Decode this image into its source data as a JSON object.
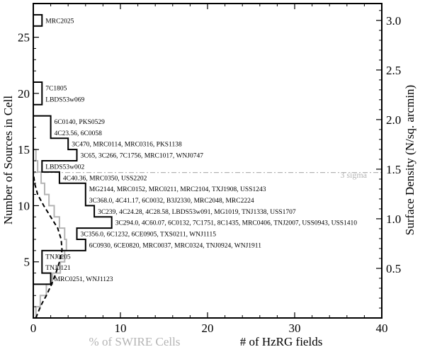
{
  "chart_data": {
    "type": "step-histogram",
    "title": "",
    "ylabel_left": "Number of Sources in Cell",
    "ylabel_right": "Surface Density (N/sq. arcmin)",
    "xlabel_hzrg": "# of HzRG fields",
    "xlabel_swire": "% of SWIRE Cells",
    "xlim": [
      0,
      40
    ],
    "ylim": [
      0,
      28
    ],
    "y2lim": [
      0,
      3.17
    ],
    "x_ticks": [
      0,
      10,
      20,
      30,
      40
    ],
    "y_ticks": [
      5,
      10,
      15,
      20,
      25
    ],
    "y2_ticks": [
      0.5,
      1.0,
      1.5,
      2.0,
      2.5,
      3.0
    ],
    "threshold": {
      "y": 12.95,
      "label": "3 sigma"
    },
    "hzrg_histogram": [
      {
        "y": 3.5,
        "count": 2,
        "label": "MRC0251, WNJ1123"
      },
      {
        "y": 4.5,
        "count": 1,
        "label": "TNJ0121"
      },
      {
        "y": 5.5,
        "count": 1,
        "label": "TNJ0205"
      },
      {
        "y": 6.5,
        "count": 6,
        "label": "6C0930, 6CE0820, MRC0037, MRC0324, TNJ0924, WNJ1911"
      },
      {
        "y": 7.5,
        "count": 5,
        "label": "3C356.0, 6C1232, 6CE0905, TXS0211, WNJ1115"
      },
      {
        "y": 8.5,
        "count": 9,
        "label": "3C294.0, 4C60.07, 6C0132, 7C1751, 8C1435, MRC0406, TNJ2007, USS0943, USS1410"
      },
      {
        "y": 9.5,
        "count": 7,
        "label": "3C239, 4C24.28, 4C28.58, LBDS53w091, MG1019, TNJ1338, USS1707"
      },
      {
        "y": 10.5,
        "count": 6,
        "label": "3C368.0, 4C41.17, 6C0032, B3J2330, MRC2048, MRC2224"
      },
      {
        "y": 11.5,
        "count": 6,
        "label": "MG2144, MRC0152, MRC0211, MRC2104, TXJ1908, USS1243"
      },
      {
        "y": 12.5,
        "count": 3,
        "label": "4C40.36, MRC0350, USS2202"
      },
      {
        "y": 13.5,
        "count": 1,
        "label": "LBDS53w002"
      },
      {
        "y": 14.5,
        "count": 5,
        "label": "3C65, 3C266, 7C1756, MRC1017, WNJ0747"
      },
      {
        "y": 15.5,
        "count": 4,
        "label": "3C470, MRC0114, MRC0316, PKS1138"
      },
      {
        "y": 16.5,
        "count": 2,
        "label": "4C23.56, 6C0058"
      },
      {
        "y": 17.5,
        "count": 2,
        "label": "6C0140, PKS0529"
      },
      {
        "y": 19.5,
        "count": 1,
        "label": "LBDS53w069"
      },
      {
        "y": 20.5,
        "count": 1,
        "label": "7C1805"
      },
      {
        "y": 26.5,
        "count": 1,
        "label": "MRC2025"
      }
    ],
    "swire_histogram": [
      {
        "y": 0.5,
        "value": 0.3
      },
      {
        "y": 1.5,
        "value": 0.8
      },
      {
        "y": 2.5,
        "value": 1.5
      },
      {
        "y": 3.5,
        "value": 2.2
      },
      {
        "y": 4.5,
        "value": 3.1
      },
      {
        "y": 5.5,
        "value": 3.6
      },
      {
        "y": 6.5,
        "value": 3.8
      },
      {
        "y": 7.5,
        "value": 3.6
      },
      {
        "y": 8.5,
        "value": 3.0
      },
      {
        "y": 9.5,
        "value": 2.4
      },
      {
        "y": 10.5,
        "value": 1.8
      },
      {
        "y": 11.5,
        "value": 1.3
      },
      {
        "y": 12.5,
        "value": 0.9
      },
      {
        "y": 13.5,
        "value": 0.5
      },
      {
        "y": 14.5,
        "value": 0.3
      },
      {
        "y": 15.5,
        "value": 0.0
      }
    ],
    "swire_curve": [
      [
        0.3,
        0.0
      ],
      [
        0.6,
        0.6
      ],
      [
        1.0,
        1.3
      ],
      [
        1.5,
        2.0
      ],
      [
        2.1,
        3.0
      ],
      [
        2.6,
        4.0
      ],
      [
        3.0,
        5.0
      ],
      [
        3.3,
        6.0
      ],
      [
        3.2,
        7.0
      ],
      [
        2.8,
        8.0
      ],
      [
        2.0,
        9.0
      ],
      [
        1.2,
        10.0
      ],
      [
        0.5,
        11.0
      ],
      [
        0.15,
        12.0
      ],
      [
        0.0,
        13.0
      ]
    ],
    "colors": {
      "hzrg": "#000000",
      "swire": "#b4b4b4",
      "threshold": "#b4b4b4"
    }
  }
}
